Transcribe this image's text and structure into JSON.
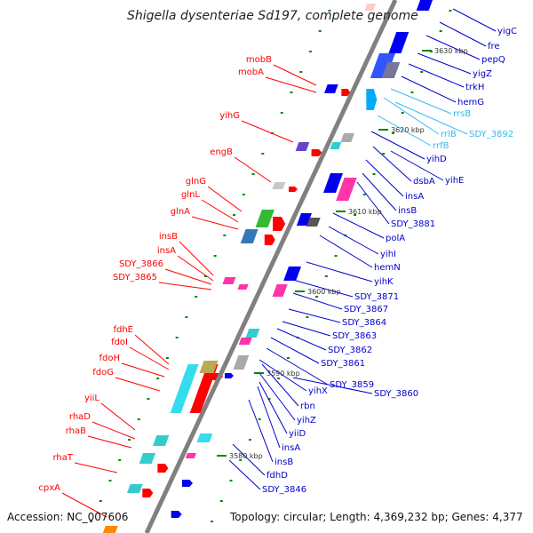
{
  "header": {
    "title": "Shigella dysenteriae Sd197, complete genome"
  },
  "footer": {
    "accession": "Accession: NC_007606",
    "topology": "Topology: circular; Length: 4,369,232 bp; Genes: 4,377"
  },
  "colors": {
    "backbone": "#808080",
    "left_label": "#ff0000",
    "right_label": "#0000cc",
    "rna_label": "#33bbee",
    "tick": "#008800"
  },
  "map": {
    "kbp_marks": [
      "3630 kbp",
      "3620 kbp",
      "3610 kbp",
      "3600 kbp",
      "3590 kbp",
      "3580 kbp"
    ],
    "left_genes": [
      "mobB",
      "mobA",
      "yihG",
      "engB",
      "glnG",
      "glnL",
      "glnA",
      "insB",
      "insA",
      "SDY_3866",
      "SDY_3865",
      "fdhE",
      "fdoI",
      "fdoH",
      "fdoG",
      "yiiL",
      "rhaD",
      "rhaB",
      "rhaT",
      "cpxA"
    ],
    "right_genes": [
      "yigC",
      "fre",
      "pepQ",
      "yigZ",
      "trkH",
      "hemG",
      "rrsB",
      "rrlB",
      "SDY_3892",
      "rrfB",
      "yihD",
      "yihE",
      "dsbA",
      "insA",
      "insB",
      "SDY_3881",
      "polA",
      "yihI",
      "hemN",
      "yihK",
      "SDY_3871",
      "SDY_3867",
      "SDY_3864",
      "SDY_3863",
      "SDY_3862",
      "SDY_3861",
      "SDY_3859",
      "SDY_3860",
      "yihX",
      "rbn",
      "yihZ",
      "yiiD",
      "insA",
      "insB",
      "fdhD",
      "SDY_3846"
    ]
  }
}
